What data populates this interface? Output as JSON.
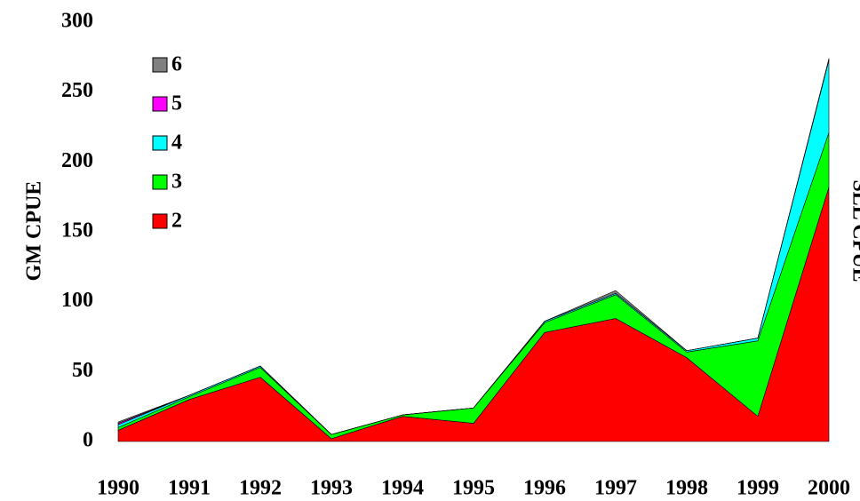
{
  "chart_data": {
    "type": "stacked_area",
    "y_label": "GM CPUE",
    "y2_label": "SLL CPUE",
    "categories": [
      "1990",
      "1991",
      "1992",
      "1993",
      "1994",
      "1995",
      "1996",
      "1997",
      "1998",
      "1999",
      "2000"
    ],
    "ylim": [
      0,
      300
    ],
    "yticks": [
      0,
      50,
      100,
      150,
      200,
      250,
      300
    ],
    "series": [
      {
        "name": "2",
        "color": "#ff0000",
        "values": [
          8,
          30,
          46,
          2,
          18,
          13,
          78,
          88,
          60,
          18,
          182
        ]
      },
      {
        "name": "3",
        "color": "#00ff00",
        "values": [
          2,
          2,
          7,
          3,
          1,
          11,
          7,
          17,
          4,
          54,
          39
        ]
      },
      {
        "name": "4",
        "color": "#00ffff",
        "values": [
          2,
          1,
          1,
          0,
          0,
          0,
          1,
          1,
          1,
          2,
          52
        ]
      },
      {
        "name": "5",
        "color": "#ff00ff",
        "values": [
          1,
          0,
          0,
          0,
          0,
          0,
          0,
          0,
          0,
          0,
          0
        ]
      },
      {
        "name": "6",
        "color": "#808080",
        "values": [
          1,
          0,
          0,
          0,
          0,
          0,
          0,
          2,
          0,
          0,
          1
        ]
      }
    ]
  }
}
